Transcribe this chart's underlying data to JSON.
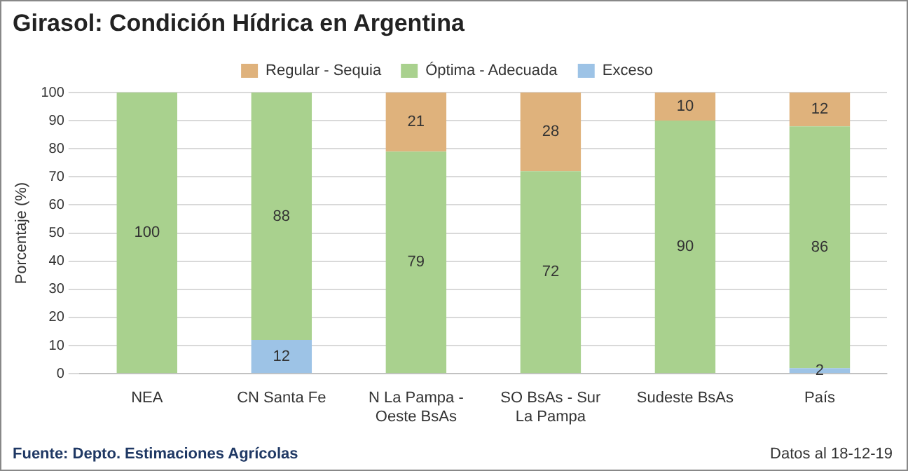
{
  "chart_data": {
    "type": "bar",
    "title": "Girasol: Condición Hídrica en Argentina",
    "ylabel": "Porcentaje (%)",
    "categories": [
      "NEA",
      "CN Santa Fe",
      "N La Pampa - Oeste BsAs",
      "SO BsAs - Sur La Pampa",
      "Sudeste BsAs",
      "País"
    ],
    "stacked": true,
    "ylim": [
      0,
      100
    ],
    "yticks": [
      0,
      10,
      20,
      30,
      40,
      50,
      60,
      70,
      80,
      90,
      100
    ],
    "grid": "y",
    "legend": "top",
    "series": [
      {
        "name": "Exceso",
        "color": "#9dc3e6",
        "values": [
          0,
          12,
          0,
          0,
          0,
          2
        ],
        "value_labels": [
          null,
          "12",
          null,
          null,
          null,
          "2"
        ]
      },
      {
        "name": "Óptima - Adecuada",
        "color": "#a9d18e",
        "values": [
          100,
          88,
          79,
          72,
          90,
          86
        ],
        "value_labels": [
          "100",
          "88",
          "79",
          "72",
          "90",
          "86"
        ]
      },
      {
        "name": "Regular - Sequia",
        "color": "#dfb27c",
        "values": [
          0,
          0,
          21,
          28,
          10,
          12
        ],
        "value_labels": [
          null,
          null,
          "21",
          "28",
          "10",
          "12"
        ]
      }
    ],
    "annotations": [
      "Fuente: Depto. Estimaciones Agrícolas",
      "Datos al 18-12-19"
    ]
  }
}
